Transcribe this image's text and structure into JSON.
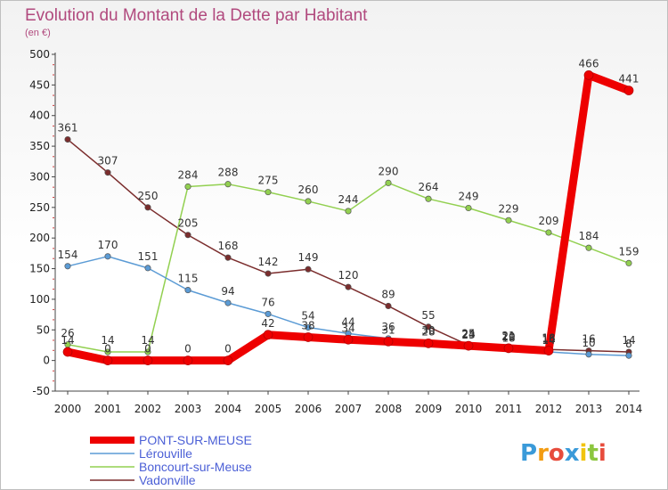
{
  "chart_data": {
    "type": "line",
    "title": "Evolution du Montant de la Dette par Habitant",
    "subtitle": "(en €)",
    "x": [
      2000,
      2001,
      2002,
      2003,
      2004,
      2005,
      2006,
      2007,
      2008,
      2009,
      2010,
      2011,
      2012,
      2013,
      2014
    ],
    "ylim": [
      -50,
      500
    ],
    "yticks": [
      -50,
      0,
      50,
      100,
      150,
      200,
      250,
      300,
      350,
      400,
      450,
      500
    ],
    "grid": false,
    "legend_position": "bottom-left",
    "series": [
      {
        "name": "PONT-SUR-MEUSE",
        "color": "#ee0000",
        "thick": true,
        "values": [
          14,
          0,
          0,
          0,
          0,
          42,
          38,
          34,
          31,
          28,
          24,
          20,
          16,
          466,
          441
        ],
        "labels": [
          "14",
          "0",
          "0",
          "0",
          "0",
          "42",
          "38",
          "34",
          "31",
          "28",
          "24",
          "20",
          "16",
          "466",
          "441"
        ]
      },
      {
        "name": "Lérouville",
        "color": "#5b9bd5",
        "thick": false,
        "values": [
          154,
          170,
          151,
          115,
          94,
          76,
          54,
          44,
          36,
          30,
          23,
          18,
          14,
          10,
          8
        ],
        "labels": [
          "154",
          "170",
          "151",
          "115",
          "94",
          "76",
          "54",
          "44",
          "36",
          "30",
          "23",
          "18",
          "14",
          "10",
          "8"
        ]
      },
      {
        "name": "Boncourt-sur-Meuse",
        "color": "#92d050",
        "thick": false,
        "values": [
          26,
          14,
          14,
          284,
          288,
          275,
          260,
          244,
          290,
          264,
          249,
          229,
          209,
          184,
          159
        ],
        "labels": [
          "26",
          "14",
          "14",
          "284",
          "288",
          "275",
          "260",
          "244",
          "290",
          "264",
          "249",
          "229",
          "209",
          "184",
          "159"
        ]
      },
      {
        "name": "Vadonville",
        "color": "#7b2d2d",
        "thick": false,
        "values": [
          361,
          307,
          250,
          205,
          168,
          142,
          149,
          120,
          89,
          55,
          25,
          21,
          18,
          16,
          14
        ],
        "labels": [
          "361",
          "307",
          "250",
          "205",
          "168",
          "142",
          "149",
          "120",
          "89",
          "55",
          "25",
          "21",
          "18",
          "16",
          "14"
        ]
      }
    ]
  },
  "branding": {
    "logo_text": "Proxiti",
    "logo_letters": [
      {
        "ch": "P",
        "color": "#3a9ad9"
      },
      {
        "ch": "r",
        "color": "#f39c12"
      },
      {
        "ch": "o",
        "color": "#e74c3c"
      },
      {
        "ch": "x",
        "color": "#3a9ad9"
      },
      {
        "ch": "i",
        "color": "#f1c40f"
      },
      {
        "ch": "t",
        "color": "#8cc63f"
      },
      {
        "ch": "i",
        "color": "#e74c3c"
      }
    ]
  }
}
